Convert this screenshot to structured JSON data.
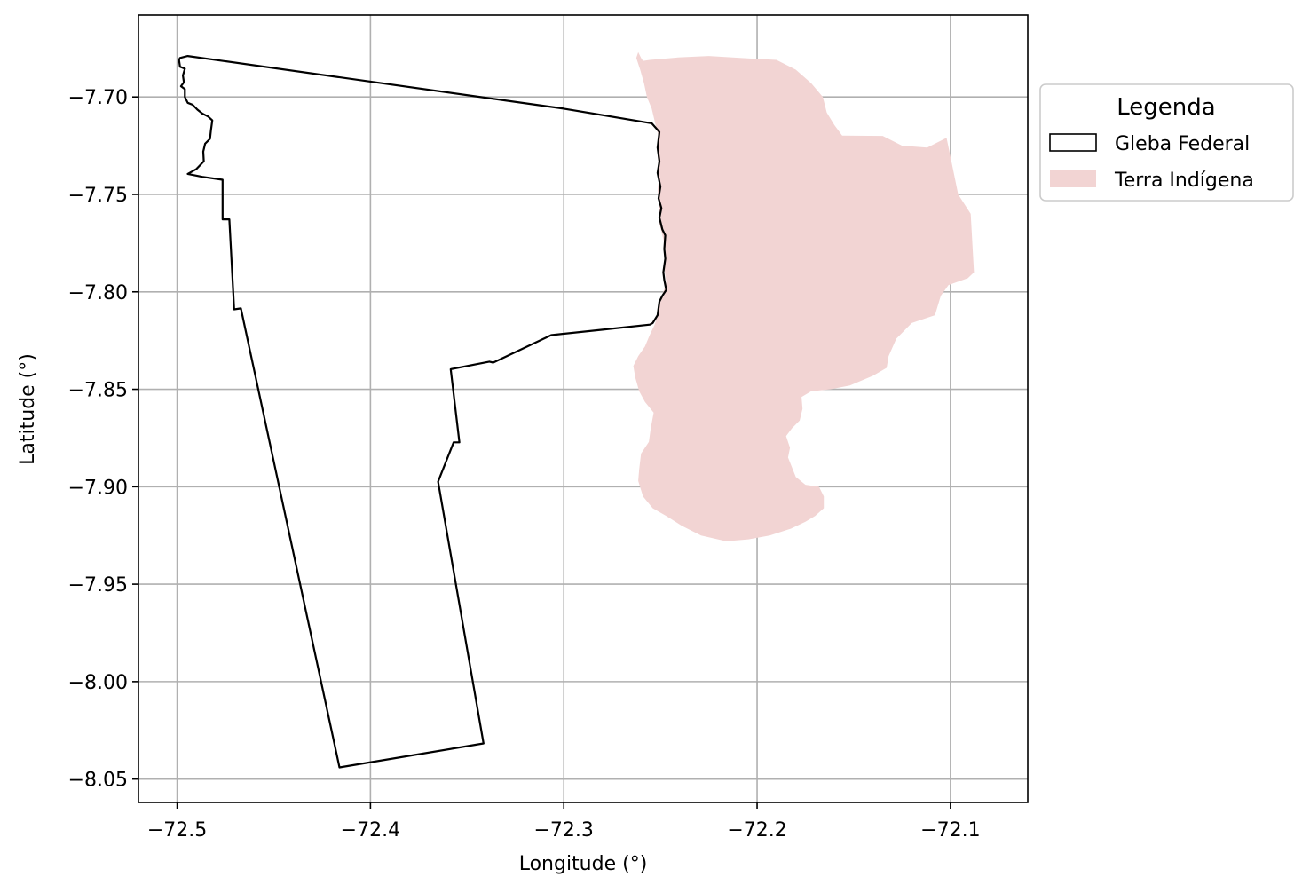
{
  "map": {
    "xlabel": "Longitude (°)",
    "ylabel": "Latitude (°)",
    "xlim": [
      -72.52,
      -72.06
    ],
    "ylim": [
      -8.062,
      -7.658
    ],
    "grid": true,
    "x_ticks": [
      {
        "value": -72.5,
        "label": "−72.5"
      },
      {
        "value": -72.4,
        "label": "−72.4"
      },
      {
        "value": -72.3,
        "label": "−72.3"
      },
      {
        "value": -72.2,
        "label": "−72.2"
      },
      {
        "value": -72.1,
        "label": "−72.1"
      }
    ],
    "y_ticks": [
      {
        "value": -7.7,
        "label": "−7.70"
      },
      {
        "value": -7.75,
        "label": "−7.75"
      },
      {
        "value": -7.8,
        "label": "−7.80"
      },
      {
        "value": -7.85,
        "label": "−7.85"
      },
      {
        "value": -7.9,
        "label": "−7.90"
      },
      {
        "value": -7.95,
        "label": "−7.95"
      },
      {
        "value": -8.0,
        "label": "−8.00"
      },
      {
        "value": -8.05,
        "label": "−8.05"
      }
    ],
    "legend": {
      "title": "Legenda",
      "placement": "outside right, top",
      "items": [
        {
          "label": "Gleba Federal",
          "style": "outline",
          "edge_color": "#000000"
        },
        {
          "label": "Terra Indígena",
          "style": "fill",
          "fill_color": "#f2d4d3"
        }
      ]
    },
    "layers": [
      {
        "name": "Gleba Federal",
        "edge_color": "#000000",
        "fill_color": "none",
        "coordinates": [
          [
            -72.4985,
            -7.68
          ],
          [
            -72.4945,
            -7.679
          ],
          [
            -72.3,
            -7.706
          ],
          [
            -72.2545,
            -7.7135
          ],
          [
            -72.2505,
            -7.718
          ],
          [
            -72.2515,
            -7.726
          ],
          [
            -72.2505,
            -7.733
          ],
          [
            -72.2515,
            -7.739
          ],
          [
            -72.25,
            -7.746
          ],
          [
            -72.251,
            -7.752
          ],
          [
            -72.2495,
            -7.757
          ],
          [
            -72.2505,
            -7.762
          ],
          [
            -72.249,
            -7.768
          ],
          [
            -72.2475,
            -7.771
          ],
          [
            -72.248,
            -7.778
          ],
          [
            -72.2475,
            -7.783
          ],
          [
            -72.2485,
            -7.79
          ],
          [
            -72.248,
            -7.794
          ],
          [
            -72.247,
            -7.799
          ],
          [
            -72.249,
            -7.802
          ],
          [
            -72.2505,
            -7.805
          ],
          [
            -72.2515,
            -7.812
          ],
          [
            -72.254,
            -7.816
          ],
          [
            -72.2555,
            -7.8168
          ],
          [
            -72.281,
            -7.8195
          ],
          [
            -72.3065,
            -7.8222
          ],
          [
            -72.3365,
            -7.8363
          ],
          [
            -72.3385,
            -7.8358
          ],
          [
            -72.3585,
            -7.8397
          ],
          [
            -72.354,
            -7.8772
          ],
          [
            -72.357,
            -7.8772
          ],
          [
            -72.365,
            -7.8974
          ],
          [
            -72.3415,
            -8.0317
          ],
          [
            -72.416,
            -8.044
          ],
          [
            -72.467,
            -7.8085
          ],
          [
            -72.4705,
            -7.809
          ],
          [
            -72.473,
            -7.7628
          ],
          [
            -72.4765,
            -7.7628
          ],
          [
            -72.4765,
            -7.7425
          ],
          [
            -72.487,
            -7.741
          ],
          [
            -72.4945,
            -7.7395
          ],
          [
            -72.49,
            -7.737
          ],
          [
            -72.4862,
            -7.733
          ],
          [
            -72.4865,
            -7.728
          ],
          [
            -72.4855,
            -7.724
          ],
          [
            -72.483,
            -7.7215
          ],
          [
            -72.4825,
            -7.717
          ],
          [
            -72.4818,
            -7.712
          ],
          [
            -72.484,
            -7.71
          ],
          [
            -72.487,
            -7.7085
          ],
          [
            -72.4895,
            -7.7065
          ],
          [
            -72.492,
            -7.704
          ],
          [
            -72.4945,
            -7.703
          ],
          [
            -72.496,
            -7.7
          ],
          [
            -72.496,
            -7.696
          ],
          [
            -72.498,
            -7.6945
          ],
          [
            -72.4965,
            -7.6925
          ],
          [
            -72.497,
            -7.689
          ],
          [
            -72.496,
            -7.6855
          ],
          [
            -72.4985,
            -7.6845
          ],
          [
            -72.499,
            -7.681
          ]
        ]
      },
      {
        "name": "Terra Indígena",
        "edge_color": "none",
        "fill_color": "#f2d4d3",
        "coordinates": [
          [
            -72.2615,
            -7.677
          ],
          [
            -72.26,
            -7.68
          ],
          [
            -72.259,
            -7.6815
          ],
          [
            -72.2555,
            -7.681
          ],
          [
            -72.24,
            -7.6797
          ],
          [
            -72.225,
            -7.679
          ],
          [
            -72.205,
            -7.6802
          ],
          [
            -72.19,
            -7.681
          ],
          [
            -72.18,
            -7.686
          ],
          [
            -72.172,
            -7.693
          ],
          [
            -72.166,
            -7.7
          ],
          [
            -72.164,
            -7.708
          ],
          [
            -72.16,
            -7.7145
          ],
          [
            -72.156,
            -7.7198
          ],
          [
            -72.135,
            -7.72
          ],
          [
            -72.125,
            -7.725
          ],
          [
            -72.112,
            -7.726
          ],
          [
            -72.102,
            -7.721
          ],
          [
            -72.096,
            -7.75
          ],
          [
            -72.0895,
            -7.76
          ],
          [
            -72.0878,
            -7.79
          ],
          [
            -72.091,
            -7.793
          ],
          [
            -72.101,
            -7.7965
          ],
          [
            -72.105,
            -7.802
          ],
          [
            -72.108,
            -7.812
          ],
          [
            -72.12,
            -7.816
          ],
          [
            -72.128,
            -7.824
          ],
          [
            -72.132,
            -7.833
          ],
          [
            -72.133,
            -7.839
          ],
          [
            -72.14,
            -7.843
          ],
          [
            -72.152,
            -7.848
          ],
          [
            -72.162,
            -7.85
          ],
          [
            -72.172,
            -7.851
          ],
          [
            -72.177,
            -7.854
          ],
          [
            -72.1765,
            -7.86
          ],
          [
            -72.178,
            -7.866
          ],
          [
            -72.182,
            -7.87
          ],
          [
            -72.185,
            -7.874
          ],
          [
            -72.183,
            -7.88
          ],
          [
            -72.184,
            -7.885
          ],
          [
            -72.18,
            -7.895
          ],
          [
            -72.175,
            -7.899
          ],
          [
            -72.168,
            -7.9
          ],
          [
            -72.1655,
            -7.905
          ],
          [
            -72.1655,
            -7.911
          ],
          [
            -72.17,
            -7.915
          ],
          [
            -72.175,
            -7.918
          ],
          [
            -72.1825,
            -7.9215
          ],
          [
            -72.1935,
            -7.925
          ],
          [
            -72.2045,
            -7.927
          ],
          [
            -72.216,
            -7.928
          ],
          [
            -72.229,
            -7.925
          ],
          [
            -72.239,
            -7.92
          ],
          [
            -72.247,
            -7.915
          ],
          [
            -72.254,
            -7.911
          ],
          [
            -72.259,
            -7.905
          ],
          [
            -72.2615,
            -7.897
          ],
          [
            -72.261,
            -7.891
          ],
          [
            -72.26,
            -7.883
          ],
          [
            -72.256,
            -7.877
          ],
          [
            -72.255,
            -7.87
          ],
          [
            -72.2535,
            -7.862
          ],
          [
            -72.258,
            -7.8565
          ],
          [
            -72.261,
            -7.851
          ],
          [
            -72.263,
            -7.844
          ],
          [
            -72.264,
            -7.838
          ],
          [
            -72.2615,
            -7.833
          ],
          [
            -72.258,
            -7.828
          ],
          [
            -72.2555,
            -7.822
          ],
          [
            -72.253,
            -7.8168
          ],
          [
            -72.2515,
            -7.812
          ],
          [
            -72.25,
            -7.805
          ],
          [
            -72.2485,
            -7.8
          ],
          [
            -72.247,
            -7.795
          ],
          [
            -72.248,
            -7.788
          ],
          [
            -72.2472,
            -7.778
          ],
          [
            -72.249,
            -7.771
          ],
          [
            -72.2505,
            -7.765
          ],
          [
            -72.2505,
            -7.756
          ],
          [
            -72.2515,
            -7.748
          ],
          [
            -72.2505,
            -7.74
          ],
          [
            -72.2515,
            -7.73
          ],
          [
            -72.2505,
            -7.722
          ],
          [
            -72.2525,
            -7.7145
          ],
          [
            -72.2545,
            -7.706
          ],
          [
            -72.257,
            -7.7
          ],
          [
            -72.2585,
            -7.693
          ],
          [
            -72.2605,
            -7.686
          ],
          [
            -72.2625,
            -7.68
          ]
        ]
      }
    ]
  }
}
